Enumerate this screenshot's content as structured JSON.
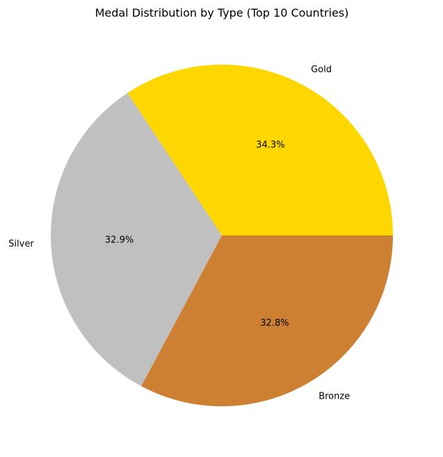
{
  "chart_data": {
    "type": "pie",
    "title": "Medal Distribution by Type (Top 10 Countries)",
    "start_angle_deg": 0,
    "direction": "counterclockwise",
    "slices": [
      {
        "label": "Gold",
        "value": 34.3,
        "pct_label": "34.3%",
        "color": "#FFD700"
      },
      {
        "label": "Silver",
        "value": 32.9,
        "pct_label": "32.9%",
        "color": "#C0C0C0"
      },
      {
        "label": "Bronze",
        "value": 32.8,
        "pct_label": "32.8%",
        "color": "#CD7F32"
      }
    ]
  }
}
